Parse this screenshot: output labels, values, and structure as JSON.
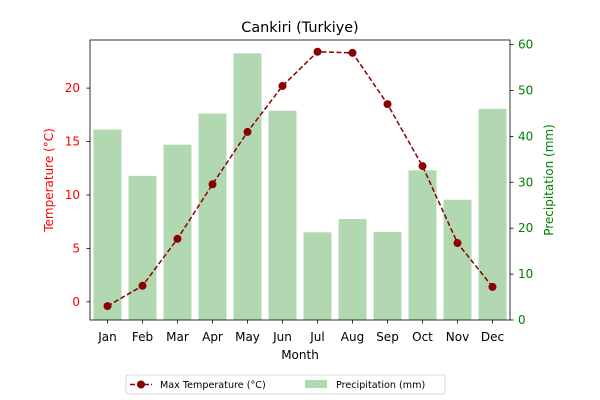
{
  "chart_data": {
    "type": "bar",
    "title": "Cankiri (Turkiye)",
    "xlabel": "Month",
    "ylabel_left": "Temperature (°C)",
    "ylabel_right": "Precipitation (mm)",
    "categories": [
      "Jan",
      "Feb",
      "Mar",
      "Apr",
      "May",
      "Jun",
      "Jul",
      "Aug",
      "Sep",
      "Oct",
      "Nov",
      "Dec"
    ],
    "ylim_left": [
      -1.7,
      24.5
    ],
    "ylim_right": [
      0,
      61
    ],
    "yticks_left": [
      0,
      5,
      10,
      15,
      20
    ],
    "yticks_right": [
      0,
      10,
      20,
      30,
      40,
      50,
      60
    ],
    "series": [
      {
        "name": "Max Temperature (°C)",
        "type": "line",
        "axis": "left",
        "color": "#8b0000",
        "values": [
          -0.4,
          1.5,
          5.9,
          11.0,
          15.9,
          20.2,
          23.4,
          23.3,
          18.5,
          12.7,
          5.5,
          1.4
        ]
      },
      {
        "name": "Precipitation (mm)",
        "type": "bar",
        "axis": "right",
        "color": "#b2d8b2",
        "values": [
          41.5,
          31.4,
          38.2,
          45.0,
          58.1,
          45.6,
          19.1,
          22.0,
          19.2,
          32.6,
          26.2,
          46.0
        ]
      }
    ],
    "left_axis_color": "#ff0000",
    "right_axis_color": "#008000",
    "legend_position": "bottom-center"
  }
}
